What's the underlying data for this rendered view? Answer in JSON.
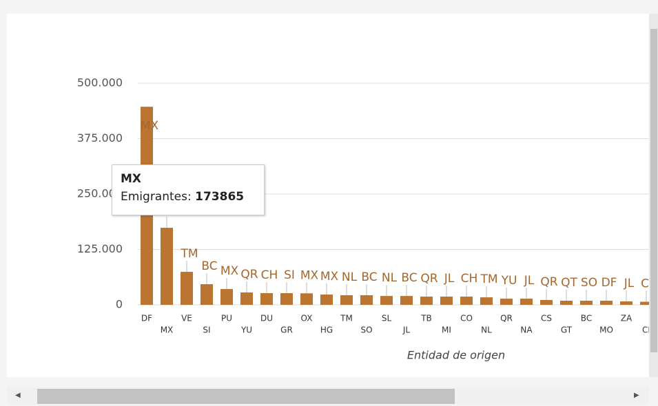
{
  "chart_data": {
    "type": "bar",
    "x_label": "Entidad de origen",
    "categories": [
      "DF",
      "MX",
      "VE",
      "SI",
      "PU",
      "YU",
      "DU",
      "GR",
      "OX",
      "HG",
      "TM",
      "SO",
      "SL",
      "JL",
      "TB",
      "MI",
      "CO",
      "NL",
      "QR",
      "NA",
      "CS",
      "GT",
      "BC",
      "MO",
      "ZA",
      "CI"
    ],
    "values": [
      447000,
      173865,
      74500,
      46600,
      35700,
      28000,
      26400,
      26400,
      26000,
      23300,
      21700,
      21700,
      20000,
      20000,
      18600,
      18600,
      18600,
      17000,
      14000,
      14000,
      11000,
      9300,
      9300,
      9300,
      7800,
      7000
    ],
    "point_labels": [
      "MX",
      "MX",
      "TM",
      "BC",
      "MX",
      "QR",
      "CH",
      "SI",
      "MX",
      "MX",
      "NL",
      "BC",
      "NL",
      "BC",
      "QR",
      "JL",
      "CH",
      "TM",
      "YU",
      "JL",
      "QR",
      "QT",
      "SO",
      "DF",
      "JL",
      "CC"
    ],
    "color": "#bb7432",
    "ylim": [
      0,
      500000
    ],
    "yticks": [
      0,
      {
        "value": 125000,
        "label": "125.000"
      },
      {
        "value": 250000,
        "label": "250.000"
      },
      {
        "value": 375000,
        "label": "375.000"
      },
      {
        "value": 500000,
        "label": "500.000"
      }
    ],
    "grid": true,
    "tooltip": {
      "series_label": "Emigrantes:",
      "index": 1
    }
  }
}
